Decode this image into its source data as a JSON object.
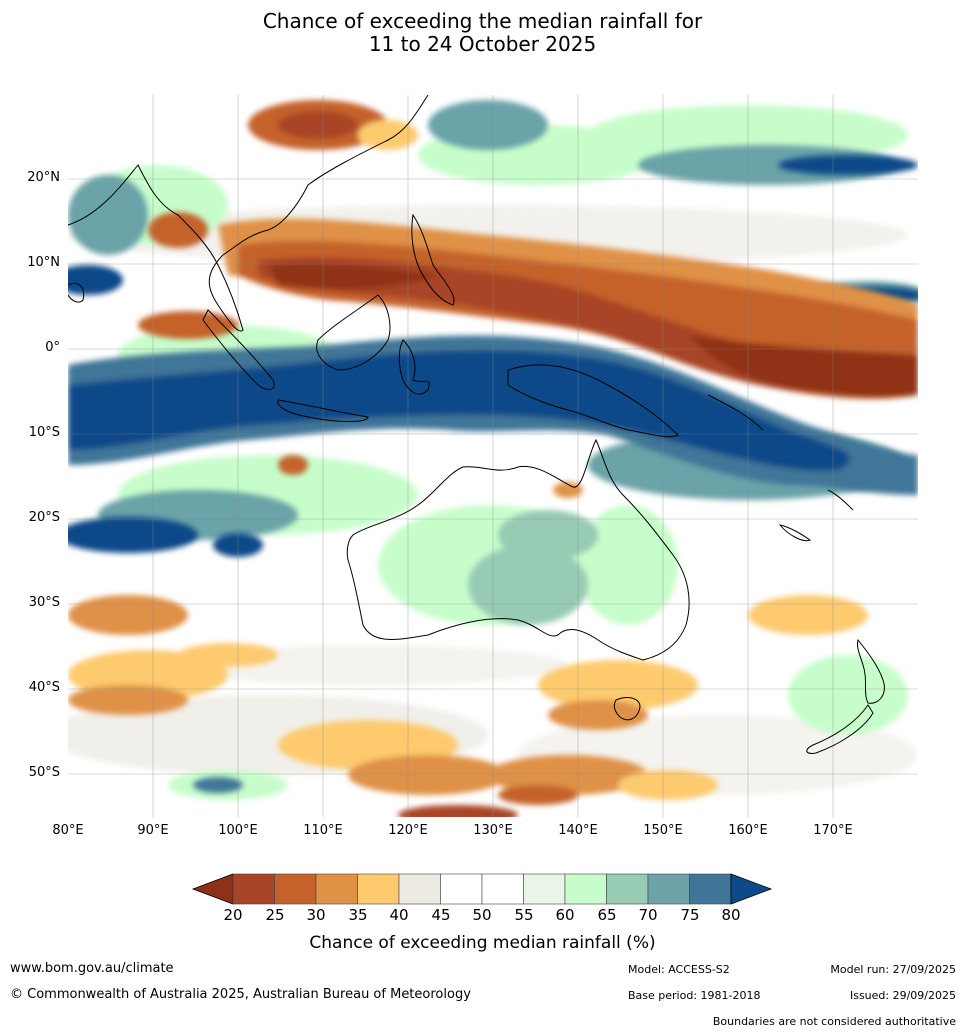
{
  "title": {
    "line1": "Chance of exceeding the median rainfall for",
    "line2": "11 to 24 October 2025"
  },
  "map": {
    "lat_labels": [
      "20°N",
      "10°N",
      "0°",
      "10°S",
      "20°S",
      "30°S",
      "40°S",
      "50°S"
    ],
    "lon_labels": [
      "80°E",
      "90°E",
      "100°E",
      "110°E",
      "120°E",
      "130°E",
      "140°E",
      "150°E",
      "160°E",
      "170°E"
    ]
  },
  "colorbar": {
    "title": "Chance of exceeding median rainfall (%)",
    "tick_labels": [
      "20",
      "25",
      "30",
      "35",
      "40",
      "45",
      "50",
      "55",
      "60",
      "65",
      "70",
      "75",
      "80"
    ],
    "under_color": "#8f3118",
    "over_color": "#0f4a88",
    "colors": [
      "#a84426",
      "#c5622c",
      "#df9146",
      "#fdca6e",
      "#eeebe5",
      "#ffffff",
      "#ffffff",
      "#e8f5e8",
      "#c7fdcb",
      "#97cbb4",
      "#6ba3a8",
      "#3f7698"
    ]
  },
  "footer": {
    "website": "www.bom.gov.au/climate",
    "copyright": "© Commonwealth of Australia 2025, Australian Bureau of Meteorology",
    "model": "Model: ACCESS-S2",
    "base_period": "Base period: 1981-2018",
    "model_run": "Model run: 27/09/2025",
    "issued": "Issued: 29/09/2025",
    "disclaimer": "Boundaries are not considered authoritative"
  }
}
